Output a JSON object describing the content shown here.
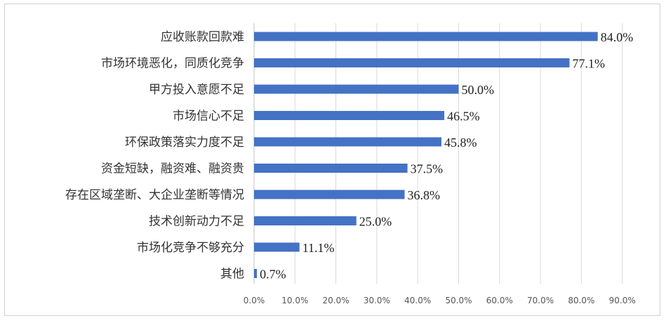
{
  "chart_data": {
    "type": "bar",
    "orientation": "horizontal",
    "categories": [
      "应收账款回款难",
      "市场环境恶化，同质化竞争",
      "甲方投入意愿不足",
      "市场信心不足",
      "环保政策落实力度不足",
      "资金短缺，融资难、融资贵",
      "存在区域垄断、大企业垄断等情况",
      "技术创新动力不足",
      "市场化竞争不够充分",
      "其他"
    ],
    "values": [
      84.0,
      77.1,
      50.0,
      46.5,
      45.8,
      37.5,
      36.8,
      25.0,
      11.1,
      0.7
    ],
    "value_labels": [
      "84.0%",
      "77.1%",
      "50.0%",
      "46.5%",
      "45.8%",
      "37.5%",
      "36.8%",
      "25.0%",
      "11.1%",
      "0.7%"
    ],
    "x_ticks": [
      "0.0%",
      "10.0%",
      "20.0%",
      "30.0%",
      "40.0%",
      "50.0%",
      "60.0%",
      "70.0%",
      "80.0%",
      "90.0%"
    ],
    "xlim": [
      0,
      90
    ],
    "grid": true,
    "bar_color": "#4472c4",
    "grid_color": "#d9d9d9"
  }
}
